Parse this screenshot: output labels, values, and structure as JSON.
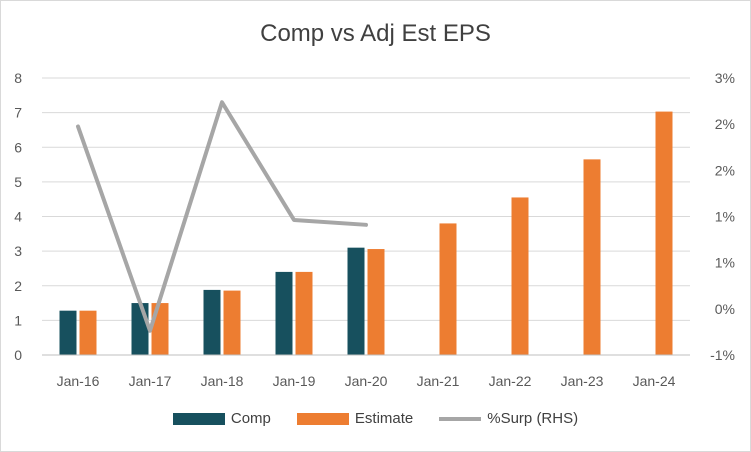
{
  "chart_data": {
    "type": "bar",
    "title": "Comp vs Adj Est EPS",
    "categories": [
      "Jan-16",
      "Jan-17",
      "Jan-18",
      "Jan-19",
      "Jan-20",
      "Jan-21",
      "Jan-22",
      "Jan-23",
      "Jan-24"
    ],
    "series": [
      {
        "name": "Comp",
        "type": "bar",
        "axis": "left",
        "color": "#17505e",
        "values": [
          1.28,
          1.5,
          1.88,
          2.4,
          3.1,
          null,
          null,
          null,
          null
        ]
      },
      {
        "name": "Estimate",
        "type": "bar",
        "axis": "left",
        "color": "#ed7d31",
        "values": [
          1.28,
          1.5,
          1.86,
          2.4,
          3.06,
          3.8,
          4.55,
          5.65,
          7.03
        ]
      },
      {
        "name": "%Surp (RHS)",
        "type": "line",
        "axis": "right",
        "color": "#a6a6a6",
        "values": [
          2.3,
          -0.65,
          2.65,
          0.95,
          0.88,
          null,
          null,
          null,
          null
        ]
      }
    ],
    "ylim": [
      0,
      8
    ],
    "yticks": [
      "0",
      "1",
      "2",
      "3",
      "4",
      "5",
      "6",
      "7",
      "8"
    ],
    "y2lim": [
      -1,
      3
    ],
    "y2ticks": [
      "-1%",
      "0%",
      "1%",
      "1%",
      "2%",
      "2%",
      "3%"
    ],
    "grid": true,
    "legend_position": "bottom"
  }
}
